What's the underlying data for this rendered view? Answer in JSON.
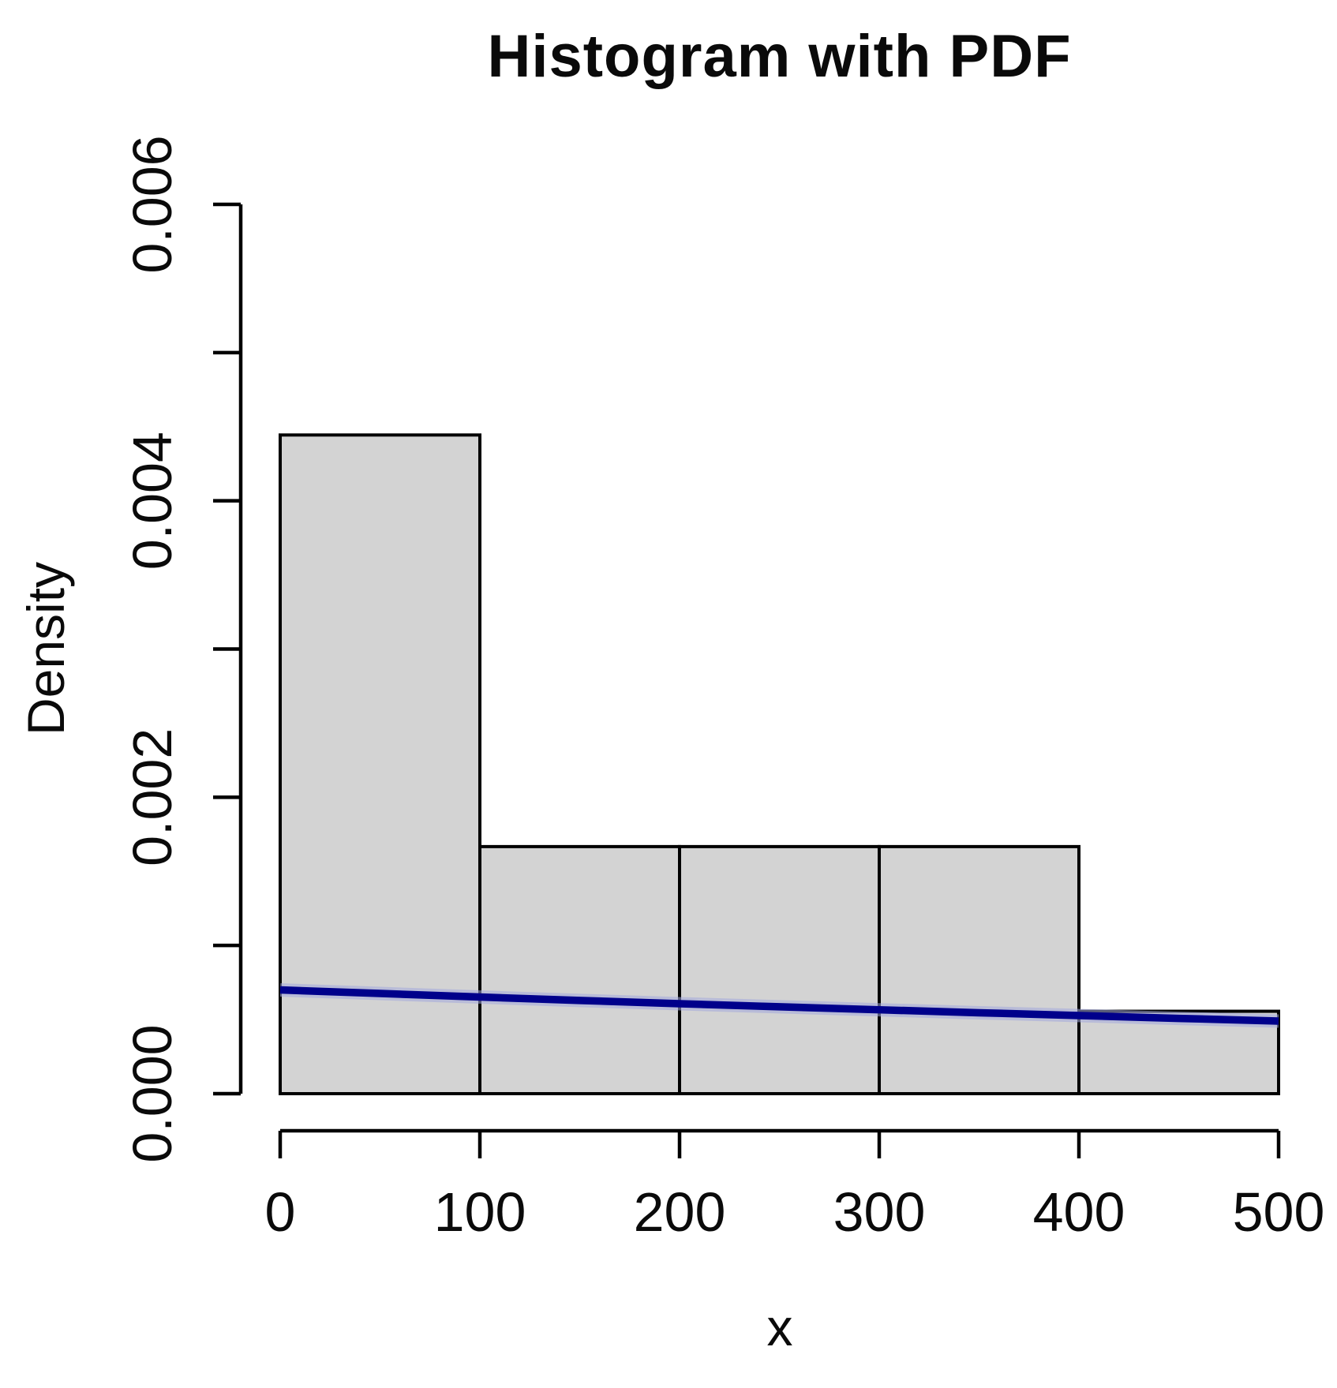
{
  "chart_data": {
    "type": "bar",
    "subtype": "histogram_with_pdf_overlay",
    "title": "Histogram with PDF",
    "xlabel": "x",
    "ylabel": "Density",
    "xlim": [
      0,
      500
    ],
    "ylim": [
      0,
      0.006
    ],
    "grid": false,
    "legend": "none",
    "x_ticks": [
      0,
      100,
      200,
      300,
      400,
      500
    ],
    "x_tick_labels": [
      "0",
      "100",
      "200",
      "300",
      "400",
      "500"
    ],
    "y_ticks": [
      0,
      0.001,
      0.002,
      0.003,
      0.004,
      0.005,
      0.006
    ],
    "y_tick_labels": [
      "0.000",
      "",
      "0.002",
      "",
      "0.004",
      "",
      "0.006"
    ],
    "histogram": {
      "bin_edges": [
        0,
        100,
        200,
        300,
        400,
        500
      ],
      "densities": [
        0.004444,
        0.001667,
        0.001667,
        0.001667,
        0.000556
      ],
      "fill_color": "#d3d3d3",
      "border_color": "#000000"
    },
    "series": [
      {
        "name": "PDF",
        "type": "line",
        "color": "#00008B",
        "halo_color": "#a3a8dc",
        "x": [
          0,
          50,
          100,
          150,
          200,
          250,
          300,
          350,
          400,
          450,
          500
        ],
        "y": [
          0.0007,
          0.000676,
          0.000652,
          0.000629,
          0.000607,
          0.000586,
          0.000566,
          0.000546,
          0.000527,
          0.000508,
          0.00049
        ]
      }
    ],
    "axis_color": "#000000",
    "text_color": "#0a0a0a",
    "background_color": "#ffffff"
  }
}
